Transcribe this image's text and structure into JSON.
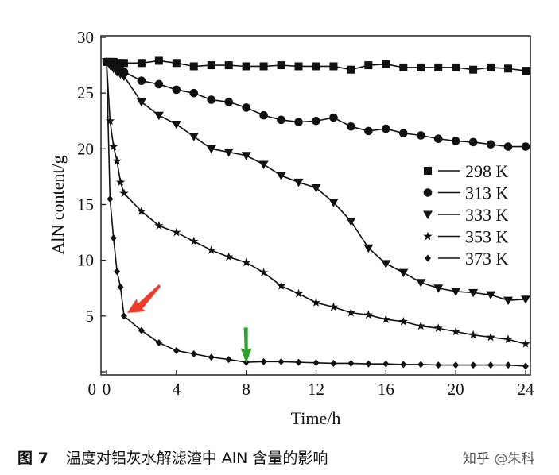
{
  "chart_data": {
    "type": "line",
    "title": "",
    "xlabel": "Time/h",
    "ylabel": "AlN content/g",
    "xlim": [
      0,
      24
    ],
    "ylim": [
      0,
      30
    ],
    "xticks": [
      0,
      4,
      8,
      12,
      16,
      20,
      24
    ],
    "yticks": [
      0,
      5,
      10,
      15,
      20,
      25,
      30
    ],
    "grid": false,
    "legend_position": "right-middle",
    "series": [
      {
        "name": "298 K",
        "marker": "square",
        "x": [
          0,
          0.2,
          0.4,
          0.6,
          0.8,
          1,
          2,
          3,
          4,
          5,
          6,
          7,
          8,
          9,
          10,
          11,
          12,
          13,
          14,
          15,
          16,
          17,
          18,
          19,
          20,
          21,
          22,
          23,
          24
        ],
        "y": [
          27.8,
          27.8,
          27.8,
          27.7,
          27.7,
          27.7,
          27.7,
          27.9,
          27.7,
          27.4,
          27.5,
          27.5,
          27.4,
          27.4,
          27.5,
          27.4,
          27.4,
          27.4,
          27.1,
          27.5,
          27.6,
          27.3,
          27.3,
          27.3,
          27.3,
          27.1,
          27.3,
          27.2,
          27.0
        ]
      },
      {
        "name": "313 K",
        "marker": "circle",
        "x": [
          0,
          0.2,
          0.4,
          0.6,
          0.8,
          1,
          2,
          3,
          4,
          5,
          6,
          7,
          8,
          9,
          10,
          11,
          12,
          13,
          14,
          15,
          16,
          17,
          18,
          19,
          20,
          21,
          22,
          23,
          24
        ],
        "y": [
          27.8,
          27.7,
          27.5,
          27.3,
          27.1,
          26.9,
          26.1,
          25.8,
          25.3,
          25.0,
          24.4,
          24.2,
          23.7,
          23.0,
          22.6,
          22.4,
          22.5,
          22.8,
          22.0,
          21.6,
          21.8,
          21.4,
          21.2,
          20.9,
          20.7,
          20.6,
          20.4,
          20.2,
          20.2
        ]
      },
      {
        "name": "333 K",
        "marker": "triangle-down",
        "x": [
          0,
          0.2,
          0.4,
          0.6,
          0.8,
          1,
          2,
          3,
          4,
          5,
          6,
          7,
          8,
          9,
          10,
          11,
          12,
          13,
          14,
          15,
          16,
          17,
          18,
          19,
          20,
          21,
          22,
          23,
          24
        ],
        "y": [
          27.8,
          27.5,
          27.2,
          26.9,
          26.7,
          26.5,
          24.2,
          23.0,
          22.2,
          21.1,
          20.0,
          19.7,
          19.4,
          18.6,
          17.6,
          17.0,
          16.5,
          15.2,
          13.5,
          11.1,
          9.7,
          8.9,
          8.0,
          7.5,
          7.2,
          7.1,
          6.9,
          6.4,
          6.5
        ]
      },
      {
        "name": "353 K",
        "marker": "star",
        "x": [
          0,
          0.2,
          0.4,
          0.6,
          0.8,
          1,
          2,
          3,
          4,
          5,
          6,
          7,
          8,
          9,
          10,
          11,
          12,
          13,
          14,
          15,
          16,
          17,
          18,
          19,
          20,
          21,
          22,
          23,
          24
        ],
        "y": [
          27.8,
          22.5,
          20.2,
          18.9,
          17.0,
          16.0,
          14.4,
          13.1,
          12.5,
          11.7,
          10.9,
          10.3,
          9.8,
          8.9,
          7.7,
          7.0,
          6.2,
          5.8,
          5.3,
          5.1,
          4.7,
          4.5,
          4.1,
          3.9,
          3.6,
          3.3,
          3.1,
          2.9,
          2.5
        ]
      },
      {
        "name": "373 K",
        "marker": "diamond",
        "x": [
          0,
          0.2,
          0.4,
          0.6,
          0.8,
          1,
          2,
          3,
          4,
          5,
          6,
          7,
          8,
          9,
          10,
          11,
          12,
          13,
          14,
          15,
          16,
          17,
          18,
          19,
          20,
          21,
          22,
          23,
          24
        ],
        "y": [
          27.8,
          15.5,
          12.0,
          9.0,
          7.6,
          5.0,
          3.7,
          2.6,
          1.9,
          1.6,
          1.3,
          1.1,
          0.85,
          0.9,
          0.9,
          0.85,
          0.8,
          0.75,
          0.75,
          0.7,
          0.7,
          0.65,
          0.65,
          0.6,
          0.6,
          0.6,
          0.6,
          0.6,
          0.5
        ]
      }
    ],
    "annotations": [
      {
        "type": "arrow",
        "color": "#f03a2a",
        "points_to": {
          "x": 1,
          "y": 5
        },
        "direction": "down-left"
      },
      {
        "type": "arrow",
        "color": "#2aa52a",
        "points_to": {
          "x": 8,
          "y": 1.4
        },
        "direction": "down"
      }
    ]
  },
  "caption": {
    "label": "图 7",
    "text": "温度对铝灰水解滤渣中 AlN 含量的影响"
  },
  "watermark": "知乎 @朱科"
}
